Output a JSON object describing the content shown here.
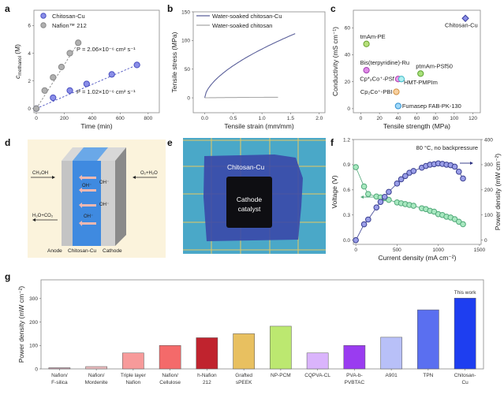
{
  "panel_labels": {
    "a": "a",
    "b": "b",
    "c": "c",
    "d": "d",
    "e": "e",
    "f": "f",
    "g": "g"
  },
  "chart_data": [
    {
      "id": "a",
      "type": "scatter",
      "xlabel": "Time (min)",
      "ylabel": {
        "main": "c",
        "sub": "methanol",
        "unit": " (M)"
      },
      "xlim": [
        -17,
        880
      ],
      "ylim": [
        -0.3,
        7.1
      ],
      "xticks": [
        "0",
        "200",
        "400",
        "600",
        "800"
      ],
      "xtick_values": [
        0,
        200,
        400,
        600,
        800
      ],
      "yticks": [
        "0",
        "2",
        "4",
        "6"
      ],
      "ytick_values": [
        0,
        2,
        4,
        6
      ],
      "series": [
        {
          "name": "Chitosan-Cu",
          "color": "#8a8ee8",
          "edge": "#4a50c0",
          "x": [
            0,
            120,
            240,
            360,
            540,
            720
          ],
          "y": [
            0,
            0.78,
            1.3,
            1.78,
            2.47,
            3.15
          ],
          "fit_annotation": "P = 1.02×10⁻⁶ cm² s⁻¹",
          "fit_end": [
            720,
            3.15
          ]
        },
        {
          "name": "Nafion™ 212",
          "color": "#b0b0b0",
          "edge": "#888888",
          "x": [
            0,
            60,
            120,
            180,
            240,
            300
          ],
          "y": [
            0,
            1.3,
            2.25,
            3.0,
            4.0,
            4.75
          ],
          "fit_annotation": "P = 2.06×10⁻⁶ cm² s⁻¹",
          "fit_end": [
            300,
            4.75
          ]
        }
      ],
      "legend": "top-left"
    },
    {
      "id": "b",
      "type": "line",
      "xlabel": "Tensile strain (mm/mm)",
      "ylabel": "Tensile stress (MPa)",
      "xlim": [
        -0.2,
        2.1
      ],
      "ylim": [
        -26,
        150
      ],
      "xticks": [
        "0.0",
        "0.5",
        "1.0",
        "1.5",
        "2.0"
      ],
      "xtick_values": [
        0,
        0.5,
        1,
        1.5,
        2
      ],
      "yticks": [
        "0",
        "50",
        "100",
        "150"
      ],
      "ytick_values": [
        0,
        50,
        100,
        150
      ],
      "series": [
        {
          "name": "Water-soaked chitosan-Cu",
          "color": "#5a5f9a",
          "max_strain": 1.58,
          "max_stress": 112
        },
        {
          "name": "Water-soaked chitosan",
          "color": "#a8a8a8",
          "max_strain": 1.28,
          "max_stress": 1
        }
      ],
      "legend": "top-left"
    },
    {
      "id": "c",
      "type": "scatter",
      "xlabel": "Tensile strength (MPa)",
      "ylabel": "Conductivity (mS cm⁻¹)",
      "xlim": [
        -8,
        128
      ],
      "ylim": [
        -3,
        73
      ],
      "xticks": [
        "0",
        "20",
        "40",
        "60",
        "80",
        "100",
        "120"
      ],
      "xtick_values": [
        0,
        20,
        40,
        60,
        80,
        100,
        120
      ],
      "yticks": [
        "0",
        "20",
        "40",
        "60"
      ],
      "ytick_values": [
        0,
        20,
        40,
        60
      ],
      "points": [
        {
          "label": "Chitosan-Cu",
          "x": 112,
          "y": 67,
          "color": "#8a8ee8",
          "edge": "#3a3fa0",
          "marker": "diamond"
        },
        {
          "label": "tmAm-PE",
          "x": 6,
          "y": 48,
          "color": "#b6e07a",
          "edge": "#6aa030",
          "marker": "circle"
        },
        {
          "label": "Bis(terpyridine)-Ru",
          "x": 6,
          "y": 28.5,
          "color": "#e08ae8",
          "edge": "#a040b0",
          "marker": "circle"
        },
        {
          "label": "ptmAm-PSf50",
          "x": 64,
          "y": 26,
          "color": "#a8e07a",
          "edge": "#5aa030",
          "marker": "circle"
        },
        {
          "label": "Cp*₂Co⁺-PSf",
          "x": 40,
          "y": 22,
          "color": "#e89ae8",
          "edge": "#b040b0",
          "marker": "circle"
        },
        {
          "label": "HMT-PMPIm",
          "x": 43.5,
          "y": 22,
          "color": "#b0f0f0",
          "edge": "#40b8c8",
          "marker": "circle"
        },
        {
          "label": "Cp₂Co⁺-PBI",
          "x": 38,
          "y": 12.5,
          "color": "#f8d0a0",
          "edge": "#d09040",
          "marker": "circle"
        },
        {
          "label": "Fumasep FAB-PK-130",
          "x": 40,
          "y": 2,
          "color": "#a0d8f8",
          "edge": "#3090d0",
          "marker": "circle"
        }
      ]
    },
    {
      "id": "f",
      "type": "line",
      "annotation": "80 °C, no backpressure",
      "xlabel": "Current density (mA cm⁻²)",
      "ylabel_left": "Voltage (V)",
      "ylabel_right": "Power density (mW cm⁻²)",
      "xlim": [
        -30,
        1520
      ],
      "ylim_left": [
        -0.05,
        1.2
      ],
      "ylim_right": [
        -16.7,
        400
      ],
      "xticks": [
        "0",
        "500",
        "1000",
        "1500"
      ],
      "xtick_values": [
        0,
        500,
        1000,
        1500
      ],
      "yticks_left": [
        "0.0",
        "0.3",
        "0.6",
        "0.9",
        "1.2"
      ],
      "ytick_left_values": [
        0,
        0.3,
        0.6,
        0.9,
        1.2
      ],
      "yticks_right": [
        "0",
        "100",
        "200",
        "300",
        "400"
      ],
      "ytick_right_values": [
        0,
        100,
        200,
        300,
        400
      ],
      "x": [
        0,
        100,
        150,
        250,
        300,
        350,
        400,
        500,
        550,
        600,
        650,
        700,
        800,
        850,
        900,
        950,
        1000,
        1050,
        1100,
        1150,
        1200,
        1250,
        1300
      ],
      "series": [
        {
          "axis": "left",
          "color": "#a8e8c0",
          "edge": "#50a878",
          "y": [
            0.87,
            0.64,
            0.55,
            0.52,
            0.51,
            0.5,
            0.48,
            0.45,
            0.44,
            0.43,
            0.42,
            0.41,
            0.38,
            0.37,
            0.35,
            0.34,
            0.31,
            0.3,
            0.28,
            0.27,
            0.25,
            0.22,
            0.19
          ]
        },
        {
          "axis": "right",
          "color": "#9a9ee8",
          "edge": "#3a3f90",
          "y": [
            0,
            63,
            82,
            130,
            152,
            172,
            192,
            225,
            242,
            255,
            268,
            275,
            288,
            295,
            300,
            302,
            305,
            303,
            300,
            298,
            292,
            272,
            245
          ]
        }
      ]
    },
    {
      "id": "g",
      "type": "bar",
      "ylabel": "Power density (mW cm⁻²)",
      "ylim": [
        0,
        380
      ],
      "yticks": [
        "0",
        "100",
        "200",
        "300"
      ],
      "ytick_values": [
        0,
        100,
        200,
        300
      ],
      "categories": [
        [
          "Nafion/",
          "F-silica"
        ],
        [
          "Nafion/",
          "Mordenite"
        ],
        [
          "Triple layer",
          "Nafion"
        ],
        [
          "Nafion/",
          "Cellulose"
        ],
        [
          "h-Nafion",
          "212"
        ],
        [
          "Grafted",
          "sPEEK"
        ],
        [
          "NP-PCM",
          ""
        ],
        [
          "CQPVA-CL",
          ""
        ],
        [
          "PVA-b-",
          "PVBTAC"
        ],
        [
          "A901",
          ""
        ],
        [
          "TPN",
          ""
        ],
        [
          "Chitosan-",
          "Cu"
        ]
      ],
      "values": [
        5,
        10,
        68,
        100,
        133,
        150,
        182,
        68,
        100,
        135,
        252,
        302
      ],
      "colors": [
        "#c09aa6",
        "#edbdc0",
        "#f79a9a",
        "#f46a6a",
        "#c0232e",
        "#e8c060",
        "#bce870",
        "#dab4fc",
        "#9a3cf0",
        "#b8c0f8",
        "#5a6ff0",
        "#1e3ef0"
      ],
      "annotation": "This work"
    }
  ],
  "diagram_d": {
    "left_in": "CH₃OH",
    "left_out": "H₂O+CO₂",
    "right_in": "O₂+H₂O",
    "ion": "OH⁻",
    "layers": [
      "Anode",
      "Chitosan-Cu",
      "Cathode"
    ]
  },
  "photo_e": {
    "membrane_label": "Chitosan-Cu",
    "catalyst_label": [
      "Cathode",
      "catalyst"
    ]
  }
}
